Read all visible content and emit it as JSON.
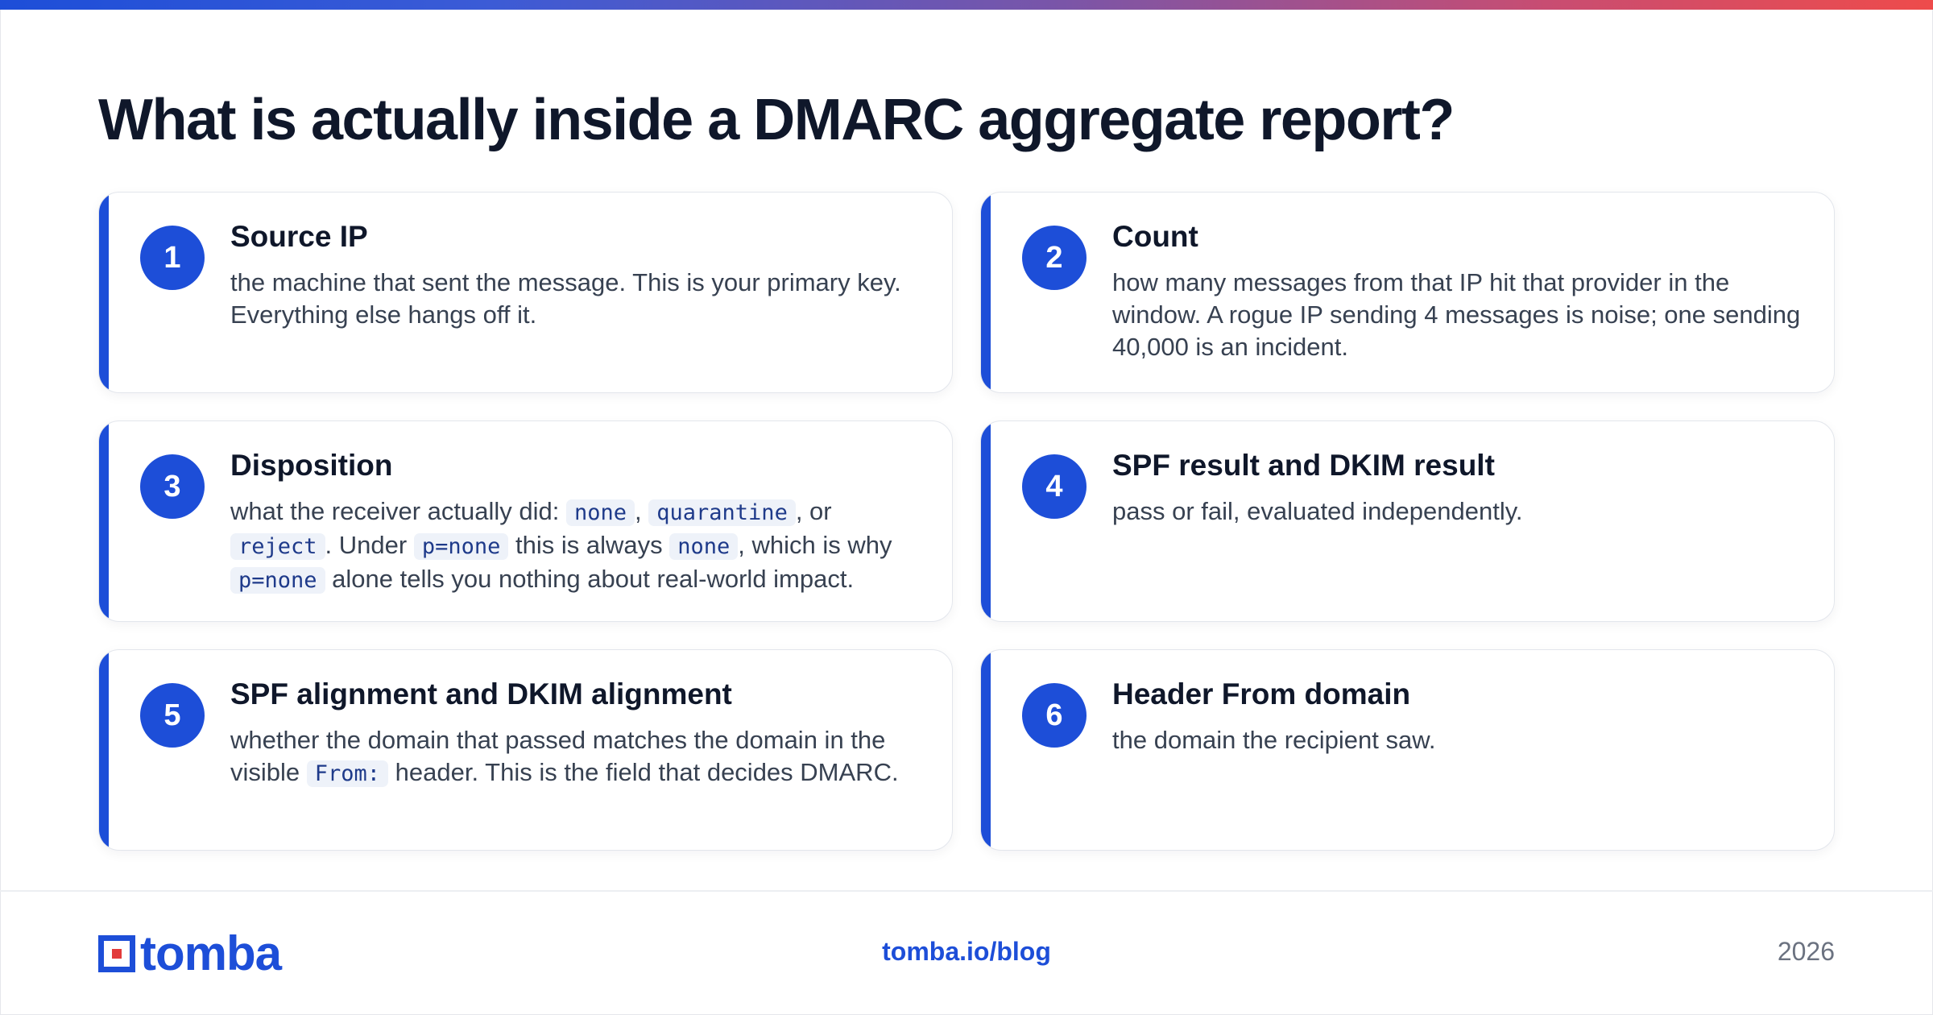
{
  "title": "What is actually inside a DMARC aggregate report?",
  "cards": [
    {
      "number": "1",
      "heading": "Source IP",
      "text": "the machine that sent the message. This is your primary key. Everything else hangs off it."
    },
    {
      "number": "2",
      "heading": "Count",
      "text": "how many messages from that IP hit that provider in the window. A rogue IP sending 4 messages is noise; one sending 40,000 is an incident."
    },
    {
      "number": "3",
      "heading": "Disposition",
      "parts": [
        "what the receiver actually did: ",
        "none",
        ", ",
        "quarantine",
        ", or ",
        "reject",
        ". Under ",
        "p=none",
        " this is always ",
        "none",
        ", which is why ",
        "p=none",
        " alone tells you nothing about real-world impact."
      ]
    },
    {
      "number": "4",
      "heading": "SPF result and DKIM result",
      "text": "pass or fail, evaluated independently."
    },
    {
      "number": "5",
      "heading": "SPF alignment and DKIM alignment",
      "parts": [
        "whether the domain that passed matches the domain in the visible ",
        "From:",
        " header. This is the field that decides DMARC."
      ]
    },
    {
      "number": "6",
      "heading": "Header From domain",
      "text": "the domain the recipient saw."
    }
  ],
  "footer": {
    "logo_text": "tomba",
    "url": "tomba.io/blog",
    "year": "2026"
  },
  "colors": {
    "accent": "#1d4ed8",
    "logo_red": "#e23b3b"
  }
}
